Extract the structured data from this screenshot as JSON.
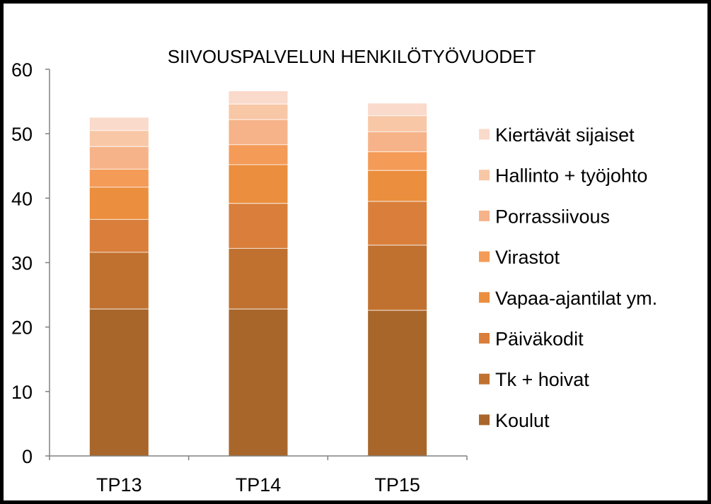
{
  "chart_data": {
    "type": "bar",
    "stacked": true,
    "title": "SIIVOUSPALVELUN  HENKILÖTYÖVUODET",
    "xlabel": "",
    "ylabel": "",
    "ylim": [
      0,
      60
    ],
    "yticks": [
      "0",
      "10",
      "20",
      "30",
      "40",
      "50",
      "60"
    ],
    "grid": false,
    "legend_position": "right",
    "categories": [
      "TP13",
      "TP14",
      "TP15"
    ],
    "series": [
      {
        "name": "Koulut",
        "color": "#A9662B",
        "values": [
          22.8,
          22.8,
          22.6
        ]
      },
      {
        "name": "Tk + hoivat",
        "color": "#C0712F",
        "values": [
          8.8,
          9.4,
          10.1
        ]
      },
      {
        "name": "Päiväkodit",
        "color": "#D97F3B",
        "values": [
          5.1,
          7.0,
          6.8
        ]
      },
      {
        "name": "Vapaa-ajantilat ym.",
        "color": "#EB8E3D",
        "values": [
          5.0,
          6.0,
          4.8
        ]
      },
      {
        "name": "Virastot",
        "color": "#F49B58",
        "values": [
          2.8,
          3.1,
          2.9
        ]
      },
      {
        "name": "Porrassiivous",
        "color": "#F6B389",
        "values": [
          3.5,
          3.9,
          3.1
        ]
      },
      {
        "name": "Hallinto + työjohto",
        "color": "#F8C7A6",
        "values": [
          2.5,
          2.4,
          2.5
        ]
      },
      {
        "name": "Kiertävät sijaiset",
        "color": "#FADACB",
        "values": [
          2.0,
          2.0,
          1.9
        ]
      }
    ]
  }
}
